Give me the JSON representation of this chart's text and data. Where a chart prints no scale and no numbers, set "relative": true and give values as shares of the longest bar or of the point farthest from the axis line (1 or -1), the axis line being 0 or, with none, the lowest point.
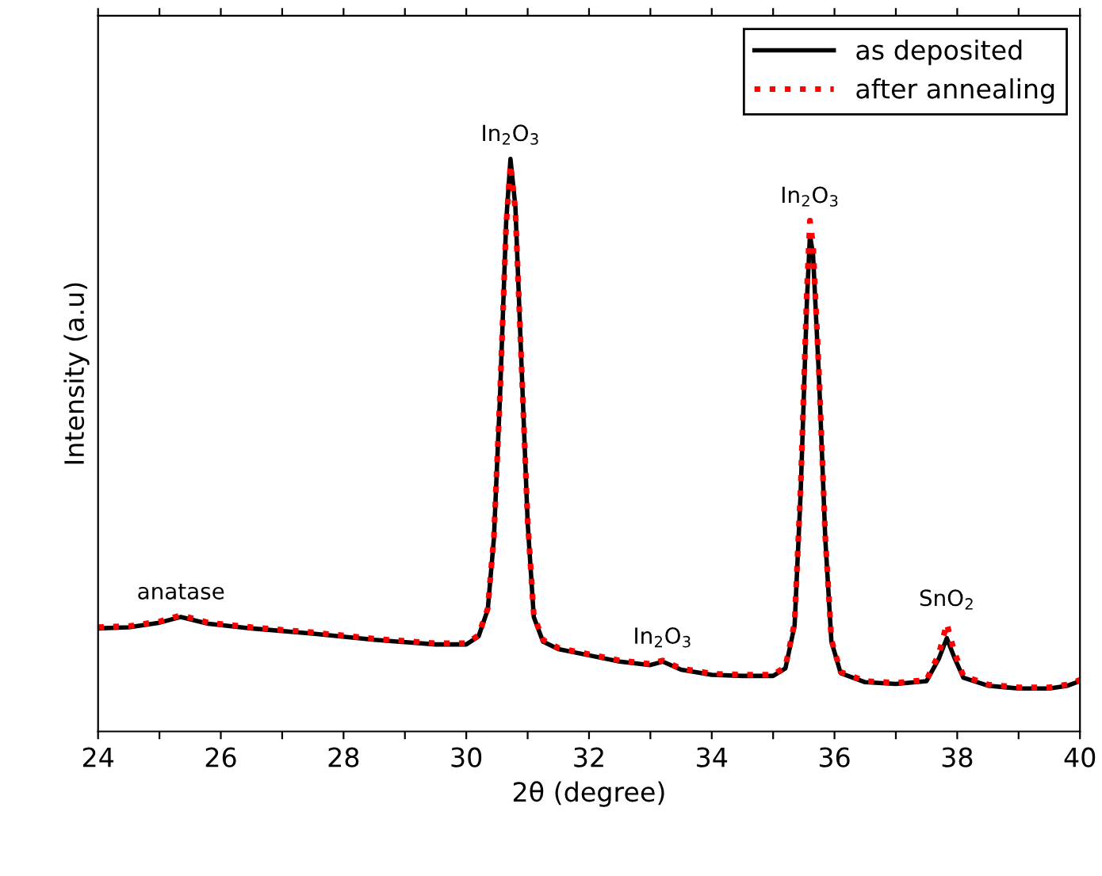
{
  "chart_data": {
    "type": "line",
    "relative": true,
    "xlabel": "2θ (degree)",
    "ylabel": "Intensity (a.u)",
    "xlim": [
      24,
      40
    ],
    "xticks": [
      24,
      {
        "value": 25,
        "label": null
      },
      26,
      {
        "value": 27,
        "label": null
      },
      28,
      {
        "value": 29,
        "label": null
      },
      30,
      {
        "value": 31,
        "label": null
      },
      32,
      {
        "value": 33,
        "label": null
      },
      34,
      {
        "value": 35,
        "label": null
      },
      36,
      {
        "value": 37,
        "label": null
      },
      38,
      {
        "value": 39,
        "label": null
      },
      40
    ],
    "tick_labels": "x",
    "grid": false,
    "legend": "top right",
    "x": [
      24.0,
      24.5,
      25.0,
      25.35,
      25.8,
      26.5,
      27.5,
      28.5,
      29.5,
      30.0,
      30.2,
      30.35,
      30.45,
      30.55,
      30.65,
      30.72,
      30.8,
      30.9,
      31.0,
      31.1,
      31.25,
      31.5,
      32.0,
      32.5,
      33.0,
      33.2,
      33.5,
      34.0,
      34.5,
      35.0,
      35.2,
      35.35,
      35.45,
      35.55,
      35.6,
      35.65,
      35.75,
      35.85,
      35.95,
      36.1,
      36.5,
      37.0,
      37.5,
      37.7,
      37.83,
      37.95,
      38.1,
      38.5,
      39.0,
      39.5,
      39.8,
      40.0
    ],
    "series": [
      {
        "name": "as deposited",
        "color": "#000000",
        "line_style": "solid",
        "values": [
          0.18,
          0.182,
          0.19,
          0.2,
          0.188,
          0.18,
          0.171,
          0.16,
          0.152,
          0.152,
          0.166,
          0.213,
          0.337,
          0.586,
          0.89,
          1.0,
          0.917,
          0.64,
          0.365,
          0.2,
          0.157,
          0.144,
          0.133,
          0.122,
          0.116,
          0.122,
          0.108,
          0.099,
          0.097,
          0.097,
          0.11,
          0.185,
          0.42,
          0.75,
          0.867,
          0.834,
          0.613,
          0.337,
          0.157,
          0.102,
          0.086,
          0.083,
          0.088,
          0.127,
          0.163,
          0.13,
          0.094,
          0.08,
          0.075,
          0.075,
          0.08,
          0.088
        ]
      },
      {
        "name": "after annealing",
        "color": "#ff0000",
        "line_style": "dotted",
        "values": [
          0.182,
          0.184,
          0.192,
          0.203,
          0.19,
          0.182,
          0.173,
          0.162,
          0.154,
          0.154,
          0.168,
          0.215,
          0.34,
          0.59,
          0.885,
          0.99,
          0.91,
          0.64,
          0.368,
          0.203,
          0.16,
          0.146,
          0.135,
          0.124,
          0.118,
          0.124,
          0.11,
          0.101,
          0.099,
          0.099,
          0.113,
          0.19,
          0.43,
          0.77,
          0.892,
          0.85,
          0.62,
          0.34,
          0.16,
          0.104,
          0.088,
          0.085,
          0.09,
          0.135,
          0.188,
          0.14,
          0.097,
          0.082,
          0.077,
          0.077,
          0.082,
          0.09
        ]
      }
    ],
    "annotations": [
      {
        "text": "anatase",
        "x": 25.35,
        "y": 0.2
      },
      {
        "text": "In$_{2}$O$_{3}$",
        "x": 30.72,
        "y": 1.0
      },
      {
        "text": "In$_{2}$O$_{3}$",
        "x": 33.2,
        "y": 0.122
      },
      {
        "text": "In$_{2}$O$_{3}$",
        "x": 35.6,
        "y": 0.892
      },
      {
        "text": "SnO$_{2}$",
        "x": 37.83,
        "y": 0.188
      }
    ]
  }
}
